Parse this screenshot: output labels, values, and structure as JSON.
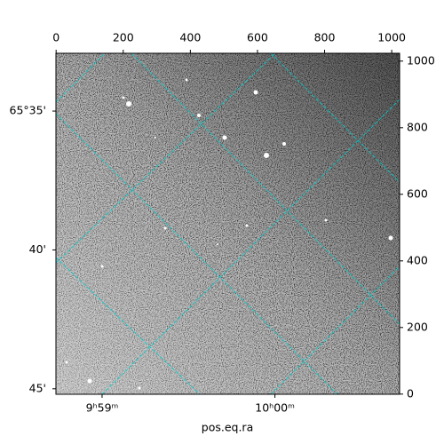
{
  "chart_data": {
    "type": "image",
    "xlabel": "pos.eq.ra",
    "xlim": [
      -0.5,
      1023.5
    ],
    "ylim": [
      -0.5,
      1023.5
    ],
    "xticks": [
      0,
      200,
      400,
      600,
      800,
      1000
    ],
    "yticks": [
      0,
      200,
      400,
      600,
      800,
      1000
    ],
    "dec_ticks": [
      {
        "value": 850,
        "label": "65°35'"
      },
      {
        "value": 433,
        "label": "40'"
      },
      {
        "value": 16,
        "label": "45'"
      }
    ],
    "ra_ticks": [
      {
        "value": 137,
        "label": "9ʰ59ᵐ"
      },
      {
        "value": 652,
        "label": "10ʰ00ᵐ"
      }
    ],
    "grid": true,
    "grid_color": "#00cccc",
    "cmap": "gray"
  }
}
